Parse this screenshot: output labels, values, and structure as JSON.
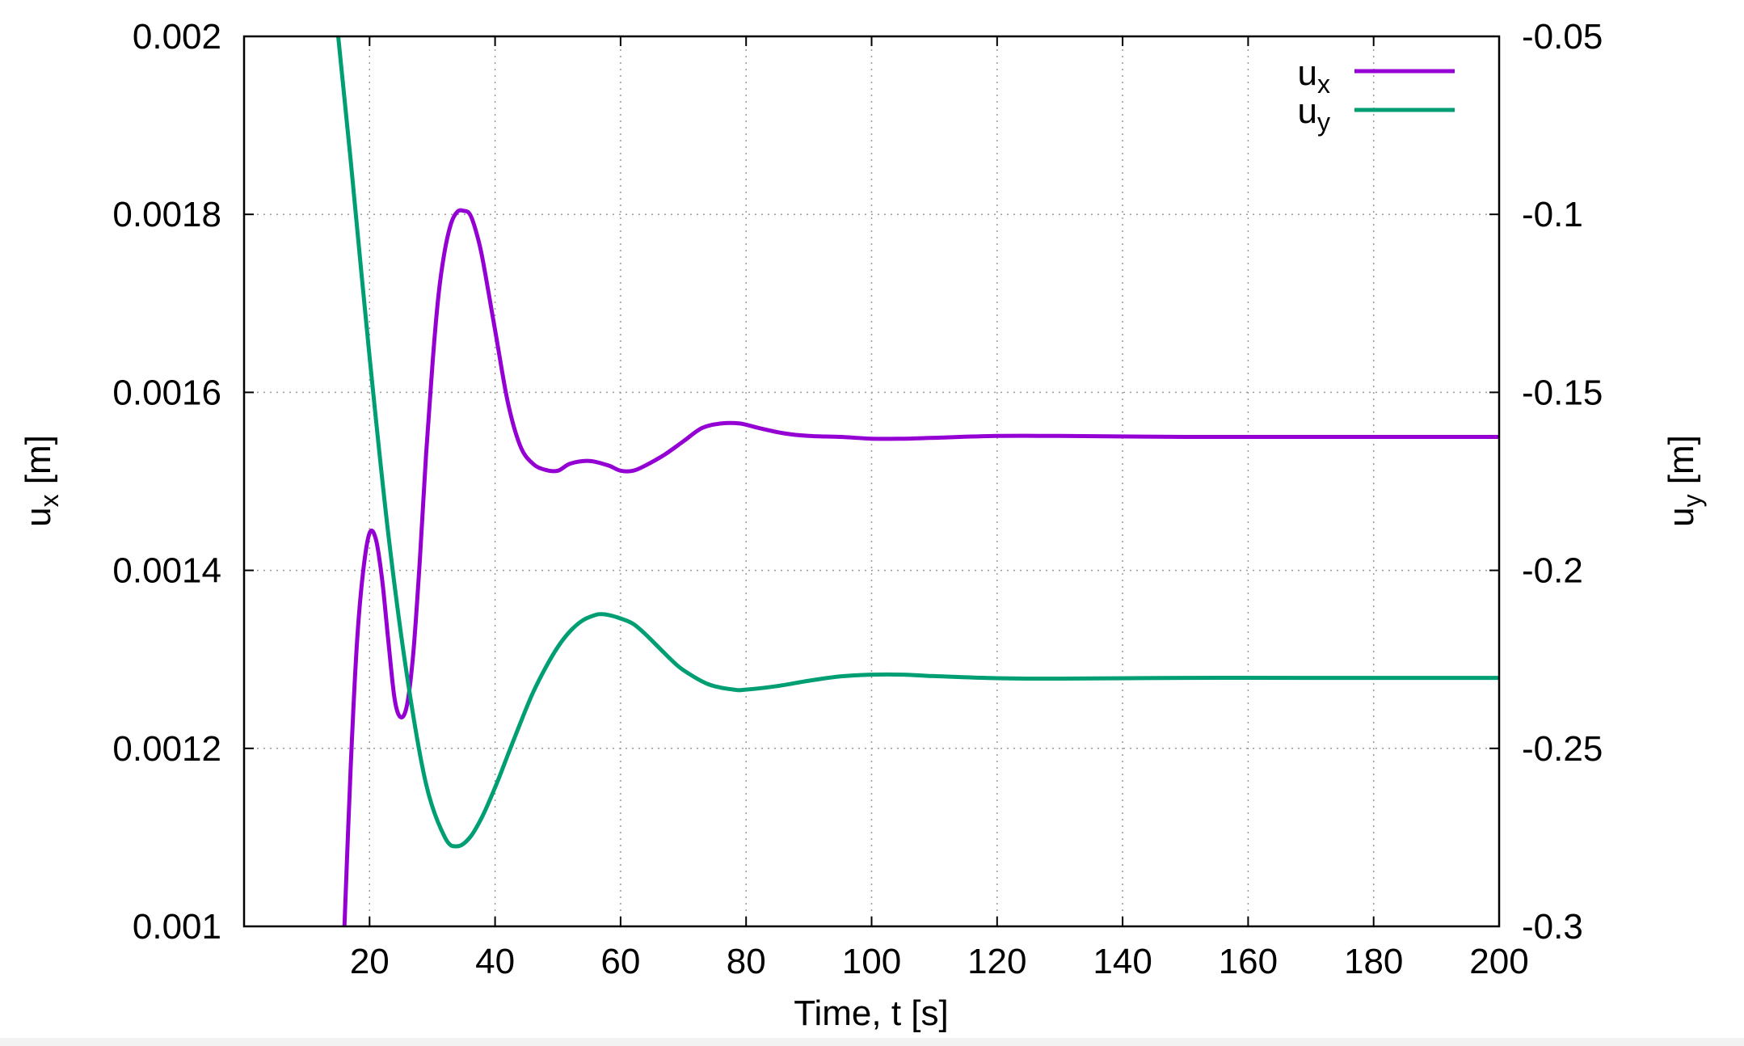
{
  "chart_data": {
    "type": "line",
    "title": "",
    "xlabel": "Time, t [s]",
    "ylabel_left": {
      "base": "u",
      "sub": "x",
      "suffix": " [m]"
    },
    "ylabel_right": {
      "base": "u",
      "sub": "y",
      "suffix": " [m]"
    },
    "xlim": [
      0,
      200
    ],
    "ylim_left": [
      0.001,
      0.002
    ],
    "ylim_right": [
      -0.3,
      -0.05
    ],
    "x_ticks": [
      20,
      40,
      60,
      80,
      100,
      120,
      140,
      160,
      180,
      200
    ],
    "y_ticks_left": [
      0.001,
      0.0012,
      0.0014,
      0.0016,
      0.0018,
      0.002
    ],
    "y_tick_labels_left": [
      "0.001",
      "0.0012",
      "0.0014",
      "0.0016",
      "0.0018",
      "0.002"
    ],
    "y_ticks_right": [
      -0.3,
      -0.25,
      -0.2,
      -0.15,
      -0.1,
      -0.05
    ],
    "y_tick_labels_right": [
      "-0.3",
      "-0.25",
      "-0.2",
      "-0.15",
      "-0.1",
      "-0.05"
    ],
    "grid": true,
    "legend_position": "top-right",
    "series": [
      {
        "name": "u_x",
        "legend": {
          "base": "u",
          "sub": "x"
        },
        "axis": "left",
        "color": "#9400d3",
        "x": [
          16,
          17,
          18,
          19,
          20,
          21,
          22,
          23,
          24,
          25,
          26,
          27,
          28,
          29,
          30,
          31,
          32,
          33,
          34,
          35,
          36,
          37,
          38,
          40,
          42,
          44,
          46,
          48,
          50,
          52,
          55,
          58,
          60,
          62,
          64,
          67,
          70,
          73,
          76,
          79,
          82,
          86,
          90,
          95,
          100,
          105,
          110,
          120,
          130,
          150,
          170,
          200
        ],
        "y": [
          0.001,
          0.00118,
          0.00132,
          0.0014,
          0.001442,
          0.001435,
          0.00139,
          0.00132,
          0.001255,
          0.001235,
          0.00125,
          0.00131,
          0.00141,
          0.00153,
          0.00163,
          0.00171,
          0.00176,
          0.00179,
          0.001803,
          0.001804,
          0.0018,
          0.00178,
          0.00175,
          0.00167,
          0.00159,
          0.00154,
          0.00152,
          0.001513,
          0.001512,
          0.00152,
          0.001523,
          0.001518,
          0.001512,
          0.001512,
          0.001518,
          0.00153,
          0.001545,
          0.00156,
          0.001565,
          0.001565,
          0.00156,
          0.001554,
          0.001551,
          0.00155,
          0.001548,
          0.001548,
          0.001549,
          0.001551,
          0.001551,
          0.00155,
          0.00155,
          0.00155
        ]
      },
      {
        "name": "u_y",
        "legend": {
          "base": "u",
          "sub": "y"
        },
        "axis": "right",
        "color": "#009e73",
        "x": [
          15,
          17,
          20,
          23,
          26,
          29,
          32,
          34,
          36,
          38,
          40,
          42,
          44,
          46,
          48,
          50,
          52,
          54,
          56,
          57,
          58,
          60,
          62,
          64,
          66,
          68,
          70,
          74,
          78,
          80,
          85,
          90,
          95,
          100,
          105,
          110,
          120,
          130,
          150,
          170,
          200
        ],
        "y": [
          -0.05,
          -0.085,
          -0.14,
          -0.19,
          -0.23,
          -0.26,
          -0.275,
          -0.2775,
          -0.275,
          -0.269,
          -0.261,
          -0.252,
          -0.243,
          -0.2345,
          -0.2275,
          -0.2215,
          -0.217,
          -0.214,
          -0.2125,
          -0.2123,
          -0.2125,
          -0.2135,
          -0.215,
          -0.218,
          -0.2215,
          -0.225,
          -0.228,
          -0.232,
          -0.2335,
          -0.2335,
          -0.2325,
          -0.231,
          -0.2298,
          -0.2293,
          -0.2293,
          -0.2297,
          -0.2303,
          -0.2304,
          -0.2302,
          -0.2302,
          -0.2302
        ]
      }
    ]
  }
}
